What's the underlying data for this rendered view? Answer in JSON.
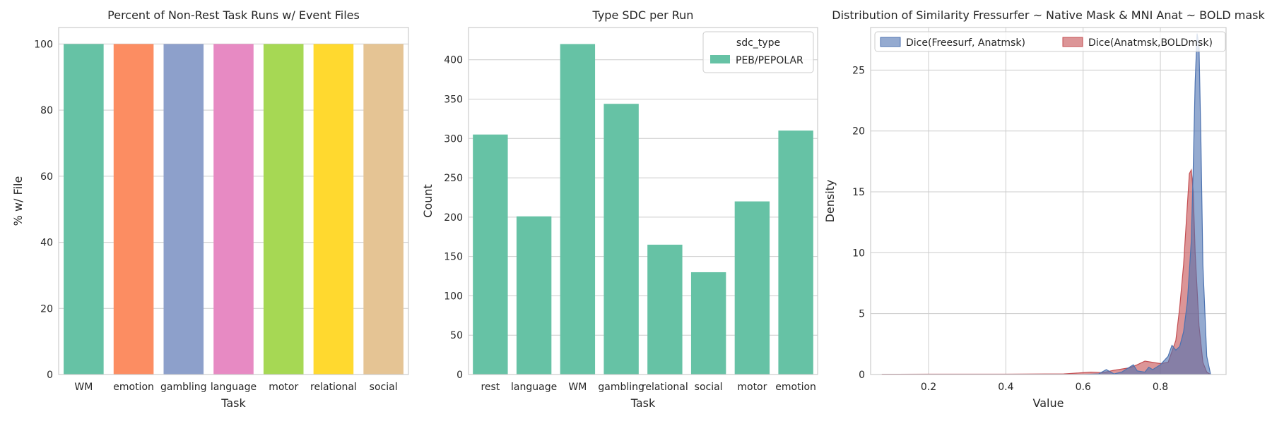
{
  "chart_data": [
    {
      "type": "bar",
      "title": "Percent of Non-Rest Task Runs w/ Event Files",
      "xlabel": "Task",
      "ylabel": "% w/ File",
      "categories": [
        "WM",
        "emotion",
        "gambling",
        "language",
        "motor",
        "relational",
        "social"
      ],
      "values": [
        100,
        100,
        100,
        100,
        100,
        100,
        100
      ],
      "colors": [
        "#66c2a5",
        "#fc8d62",
        "#8da0cb",
        "#e78ac3",
        "#a6d854",
        "#ffd92f",
        "#e5c494"
      ],
      "ylim": [
        0,
        105
      ],
      "yticks": [
        0,
        20,
        40,
        60,
        80,
        100
      ],
      "grid": true
    },
    {
      "type": "bar",
      "title": "Type SDC per Run",
      "xlabel": "Task",
      "ylabel": "Count",
      "categories": [
        "rest",
        "language",
        "WM",
        "gambling",
        "relational",
        "social",
        "motor",
        "emotion"
      ],
      "series": [
        {
          "name": "PEB/PEPOLAR",
          "values": [
            305,
            201,
            420,
            344,
            165,
            130,
            220,
            310
          ],
          "color": "#66c2a5"
        }
      ],
      "ylim": [
        0,
        441
      ],
      "yticks": [
        0,
        50,
        100,
        150,
        200,
        250,
        300,
        350,
        400
      ],
      "legend_title": "sdc_type",
      "legend_position": "top-right",
      "grid": true
    },
    {
      "type": "area",
      "title": "Distribution of Similarity Fressurfer ~ Native Mask & MNI Anat ~ BOLD mask",
      "xlabel": "Value",
      "ylabel": "Density",
      "xlim": [
        0.05,
        0.97
      ],
      "ylim": [
        0,
        28.5
      ],
      "xticks": [
        0.2,
        0.4,
        0.6,
        0.8
      ],
      "yticks": [
        0,
        5,
        10,
        15,
        20,
        25
      ],
      "legend_position": "top",
      "grid": true,
      "series": [
        {
          "name": "Dice(Freesurf, Anatmsk)",
          "color": "#4c72b0",
          "x": [
            0.08,
            0.6,
            0.64,
            0.66,
            0.68,
            0.7,
            0.72,
            0.73,
            0.74,
            0.76,
            0.77,
            0.78,
            0.8,
            0.82,
            0.83,
            0.84,
            0.85,
            0.86,
            0.87,
            0.88,
            0.885,
            0.89,
            0.895,
            0.9,
            0.905,
            0.91,
            0.92,
            0.93
          ],
          "y": [
            0,
            0,
            0.05,
            0.4,
            0.05,
            0.2,
            0.6,
            0.8,
            0.3,
            0.2,
            0.6,
            0.4,
            0.8,
            1.5,
            2.4,
            2.0,
            2.3,
            3.5,
            6.0,
            11.0,
            17.0,
            24.0,
            28.0,
            27.0,
            19.0,
            9.0,
            1.5,
            0
          ]
        },
        {
          "name": "Dice(Anatmsk,BOLDmsk)",
          "color": "#c44e52",
          "x": [
            0.08,
            0.2,
            0.4,
            0.55,
            0.6,
            0.62,
            0.65,
            0.68,
            0.7,
            0.72,
            0.74,
            0.76,
            0.78,
            0.8,
            0.82,
            0.84,
            0.85,
            0.86,
            0.87,
            0.875,
            0.88,
            0.885,
            0.89,
            0.9,
            0.91,
            0.92,
            0.93
          ],
          "y": [
            0.02,
            0.03,
            0.03,
            0.05,
            0.15,
            0.2,
            0.15,
            0.35,
            0.45,
            0.55,
            0.8,
            1.1,
            1.0,
            0.9,
            1.0,
            2.8,
            5.5,
            9.0,
            14.0,
            16.5,
            16.8,
            15.0,
            10.0,
            4.0,
            1.0,
            0.2,
            0
          ]
        }
      ]
    }
  ]
}
